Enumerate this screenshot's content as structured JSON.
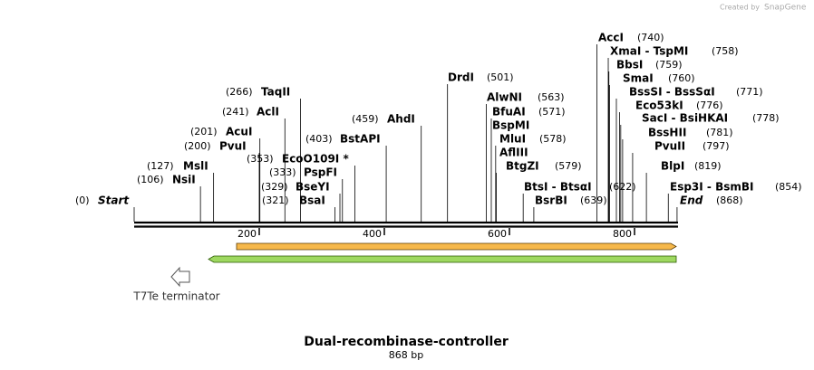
{
  "watermark": {
    "prefix": "Created by",
    "brand": "SnapGene"
  },
  "map": {
    "enzymes": [
      {
        "name": "Start",
        "site": {
          "value": 0,
          "label": "(0)"
        }
      },
      {
        "name": "NsiI",
        "site": {
          "value": 106,
          "label": "(106)"
        }
      },
      {
        "name": "MslI",
        "site": {
          "value": 127,
          "label": "(127)"
        }
      },
      {
        "name": "PvuI",
        "site": {
          "value": 200,
          "label": "(200)"
        }
      },
      {
        "name": "AcuI",
        "site": {
          "value": 201,
          "label": "(201)"
        }
      },
      {
        "name": "AclI",
        "site": {
          "value": 241,
          "label": "(241)"
        }
      },
      {
        "name": "TaqII",
        "site": {
          "value": 266,
          "label": "(266)"
        }
      },
      {
        "name": "BsaI",
        "site": {
          "value": 321,
          "label": "(321)"
        }
      },
      {
        "name": "BseYI",
        "site": {
          "value": 329,
          "label": "(329)"
        }
      },
      {
        "name": "PspFI",
        "site": {
          "value": 333,
          "label": "(333)"
        }
      },
      {
        "name": "EcoO109I *",
        "site": {
          "value": 353,
          "label": "(353)"
        }
      },
      {
        "name": "BstAPI",
        "site": {
          "value": 403,
          "label": "(403)"
        }
      },
      {
        "name": "AhdI",
        "site": {
          "value": 459,
          "label": "(459)"
        }
      },
      {
        "name": "DrdI",
        "site": {
          "value": 501,
          "label": "(501)"
        }
      },
      {
        "name": "AlwNI",
        "site": {
          "value": 563,
          "label": "(563)"
        }
      },
      {
        "name": "BfuAI",
        "site": {
          "value": 571,
          "label": "(571)"
        }
      },
      {
        "name": "BspMI"
      },
      {
        "name": "MluI",
        "site": {
          "value": 578,
          "label": "(578)"
        }
      },
      {
        "name": "AflIII"
      },
      {
        "name": "BtgZI",
        "site": {
          "value": 579,
          "label": "(579)"
        }
      },
      {
        "name": "BtsI - BtsαI",
        "site": {
          "value": 622,
          "label": "(622)"
        }
      },
      {
        "name": "BsrBI",
        "site": {
          "value": 639,
          "label": "(639)"
        }
      },
      {
        "name": "AccI",
        "site": {
          "value": 740,
          "label": "(740)"
        }
      },
      {
        "name": "XmaI - TspMI",
        "site": {
          "value": 758,
          "label": "(758)"
        }
      },
      {
        "name": "BbsI",
        "site": {
          "value": 759,
          "label": "(759)"
        }
      },
      {
        "name": "SmaI",
        "site": {
          "value": 760,
          "label": "(760)"
        }
      },
      {
        "name": "BssSI - BssSαI",
        "site": {
          "value": 771,
          "label": "(771)"
        }
      },
      {
        "name": "Eco53kI",
        "site": {
          "value": 776,
          "label": "(776)"
        }
      },
      {
        "name": "SacI - BsiHKAI",
        "site": {
          "value": 778,
          "label": "(778)"
        }
      },
      {
        "name": "BssHII",
        "site": {
          "value": 781,
          "label": "(781)"
        }
      },
      {
        "name": "PvuII",
        "site": {
          "value": 797,
          "label": "(797)"
        }
      },
      {
        "name": "BlpI",
        "site": {
          "value": 819,
          "label": "(819)"
        }
      },
      {
        "name": "Esp3I - BsmBI",
        "site": {
          "value": 854,
          "label": "(854)"
        }
      },
      {
        "name": "End",
        "site": {
          "value": 868,
          "label": "(868)"
        }
      }
    ],
    "ruler": {
      "ticks": [
        200,
        400,
        600,
        800
      ]
    },
    "feature_label": "T7Te terminator",
    "title": "Dual-recombinase-controller",
    "length": "868 bp"
  }
}
